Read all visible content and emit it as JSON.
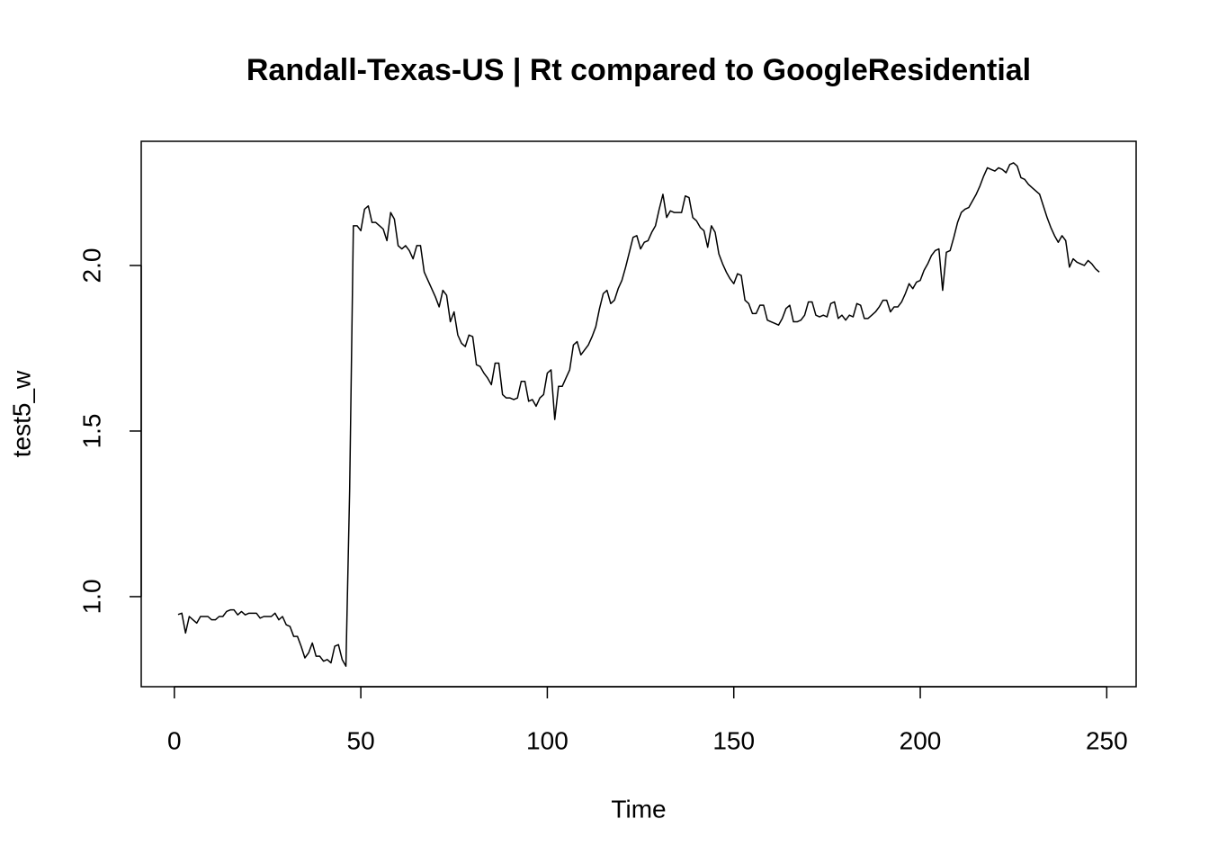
{
  "chart_data": {
    "type": "line",
    "title": "Randall-Texas-US | Rt compared to GoogleResidential",
    "xlabel": "Time",
    "ylabel": "test5_w",
    "color": "#000000",
    "xlim": [
      -8.88,
      257.88
    ],
    "ylim": [
      0.728,
      2.375
    ],
    "xticks": [
      0,
      50,
      100,
      150,
      200,
      250
    ],
    "yticks": [
      {
        "value": 1,
        "label": "1.0"
      },
      1.5,
      {
        "value": 2,
        "label": "2.0"
      }
    ],
    "x": [
      1,
      2,
      3,
      4,
      5,
      6,
      7,
      8,
      9,
      10,
      11,
      12,
      13,
      14,
      15,
      16,
      17,
      18,
      19,
      20,
      21,
      22,
      23,
      24,
      25,
      26,
      27,
      28,
      29,
      30,
      31,
      32,
      33,
      34,
      35,
      36,
      37,
      38,
      39,
      40,
      41,
      42,
      43,
      44,
      45,
      46,
      47,
      48,
      49,
      50,
      51,
      52,
      53,
      54,
      55,
      56,
      57,
      58,
      59,
      60,
      61,
      62,
      63,
      64,
      65,
      66,
      67,
      68,
      69,
      70,
      71,
      72,
      73,
      74,
      75,
      76,
      77,
      78,
      79,
      80,
      81,
      82,
      83,
      84,
      85,
      86,
      87,
      88,
      89,
      90,
      91,
      92,
      93,
      94,
      95,
      96,
      97,
      98,
      99,
      100,
      101,
      102,
      103,
      104,
      105,
      106,
      107,
      108,
      109,
      110,
      111,
      112,
      113,
      114,
      115,
      116,
      117,
      118,
      119,
      120,
      121,
      122,
      123,
      124,
      125,
      126,
      127,
      128,
      129,
      130,
      131,
      132,
      133,
      134,
      135,
      136,
      137,
      138,
      139,
      140,
      141,
      142,
      143,
      144,
      145,
      146,
      147,
      148,
      149,
      150,
      151,
      152,
      153,
      154,
      155,
      156,
      157,
      158,
      159,
      160,
      161,
      162,
      163,
      164,
      165,
      166,
      167,
      168,
      169,
      170,
      171,
      172,
      173,
      174,
      175,
      176,
      177,
      178,
      179,
      180,
      181,
      182,
      183,
      184,
      185,
      186,
      187,
      188,
      189,
      190,
      191,
      192,
      193,
      194,
      195,
      196,
      197,
      198,
      199,
      200,
      201,
      202,
      203,
      204,
      205,
      206,
      207,
      208,
      209,
      210,
      211,
      212,
      213,
      214,
      215,
      216,
      217,
      218,
      219,
      220,
      221,
      222,
      223,
      224,
      225,
      226,
      227,
      228,
      229,
      230,
      231,
      232,
      233,
      234,
      235,
      236,
      237,
      238,
      239,
      240,
      241,
      242,
      243,
      244,
      245,
      246,
      247,
      248
    ],
    "values": [
      0.946,
      0.95,
      0.89,
      0.94,
      0.93,
      0.92,
      0.94,
      0.94,
      0.94,
      0.93,
      0.93,
      0.94,
      0.94,
      0.955,
      0.96,
      0.96,
      0.945,
      0.955,
      0.945,
      0.95,
      0.95,
      0.95,
      0.935,
      0.94,
      0.94,
      0.94,
      0.95,
      0.93,
      0.94,
      0.915,
      0.91,
      0.88,
      0.88,
      0.85,
      0.815,
      0.83,
      0.86,
      0.82,
      0.82,
      0.805,
      0.81,
      0.8,
      0.85,
      0.855,
      0.81,
      0.79,
      1.32,
      2.12,
      2.12,
      2.105,
      2.17,
      2.18,
      2.13,
      2.13,
      2.12,
      2.11,
      2.075,
      2.16,
      2.14,
      2.06,
      2.05,
      2.06,
      2.045,
      2.02,
      2.06,
      2.06,
      1.98,
      1.955,
      1.93,
      1.905,
      1.875,
      1.925,
      1.91,
      1.83,
      1.86,
      1.79,
      1.765,
      1.755,
      1.79,
      1.785,
      1.7,
      1.695,
      1.675,
      1.66,
      1.64,
      1.705,
      1.705,
      1.61,
      1.6,
      1.6,
      1.595,
      1.6,
      1.65,
      1.65,
      1.59,
      1.595,
      1.575,
      1.6,
      1.61,
      1.675,
      1.685,
      1.535,
      1.635,
      1.635,
      1.66,
      1.685,
      1.76,
      1.77,
      1.73,
      1.745,
      1.76,
      1.785,
      1.815,
      1.87,
      1.915,
      1.925,
      1.885,
      1.895,
      1.93,
      1.955,
      1.995,
      2.04,
      2.085,
      2.09,
      2.05,
      2.07,
      2.075,
      2.1,
      2.12,
      2.17,
      2.215,
      2.145,
      2.165,
      2.16,
      2.16,
      2.16,
      2.21,
      2.205,
      2.145,
      2.135,
      2.115,
      2.105,
      2.055,
      2.12,
      2.1,
      2.035,
      2.005,
      1.98,
      1.96,
      1.945,
      1.975,
      1.97,
      1.895,
      1.885,
      1.855,
      1.855,
      1.88,
      1.88,
      1.835,
      1.83,
      1.825,
      1.82,
      1.84,
      1.87,
      1.88,
      1.83,
      1.83,
      1.835,
      1.85,
      1.89,
      1.89,
      1.85,
      1.845,
      1.85,
      1.845,
      1.885,
      1.89,
      1.84,
      1.85,
      1.835,
      1.85,
      1.845,
      1.885,
      1.88,
      1.84,
      1.84,
      1.85,
      1.86,
      1.875,
      1.895,
      1.895,
      1.86,
      1.875,
      1.875,
      1.89,
      1.915,
      1.945,
      1.93,
      1.95,
      1.955,
      1.985,
      2.005,
      2.03,
      2.045,
      2.05,
      1.925,
      2.04,
      2.045,
      2.085,
      2.13,
      2.16,
      2.17,
      2.175,
      2.195,
      2.215,
      2.24,
      2.27,
      2.295,
      2.29,
      2.285,
      2.295,
      2.29,
      2.28,
      2.305,
      2.31,
      2.3,
      2.265,
      2.26,
      2.245,
      2.235,
      2.225,
      2.215,
      2.18,
      2.145,
      2.115,
      2.09,
      2.07,
      2.09,
      2.075,
      1.995,
      2.02,
      2.01,
      2.005,
      2,
      2.015,
      2.005,
      1.99,
      1.98
    ]
  }
}
